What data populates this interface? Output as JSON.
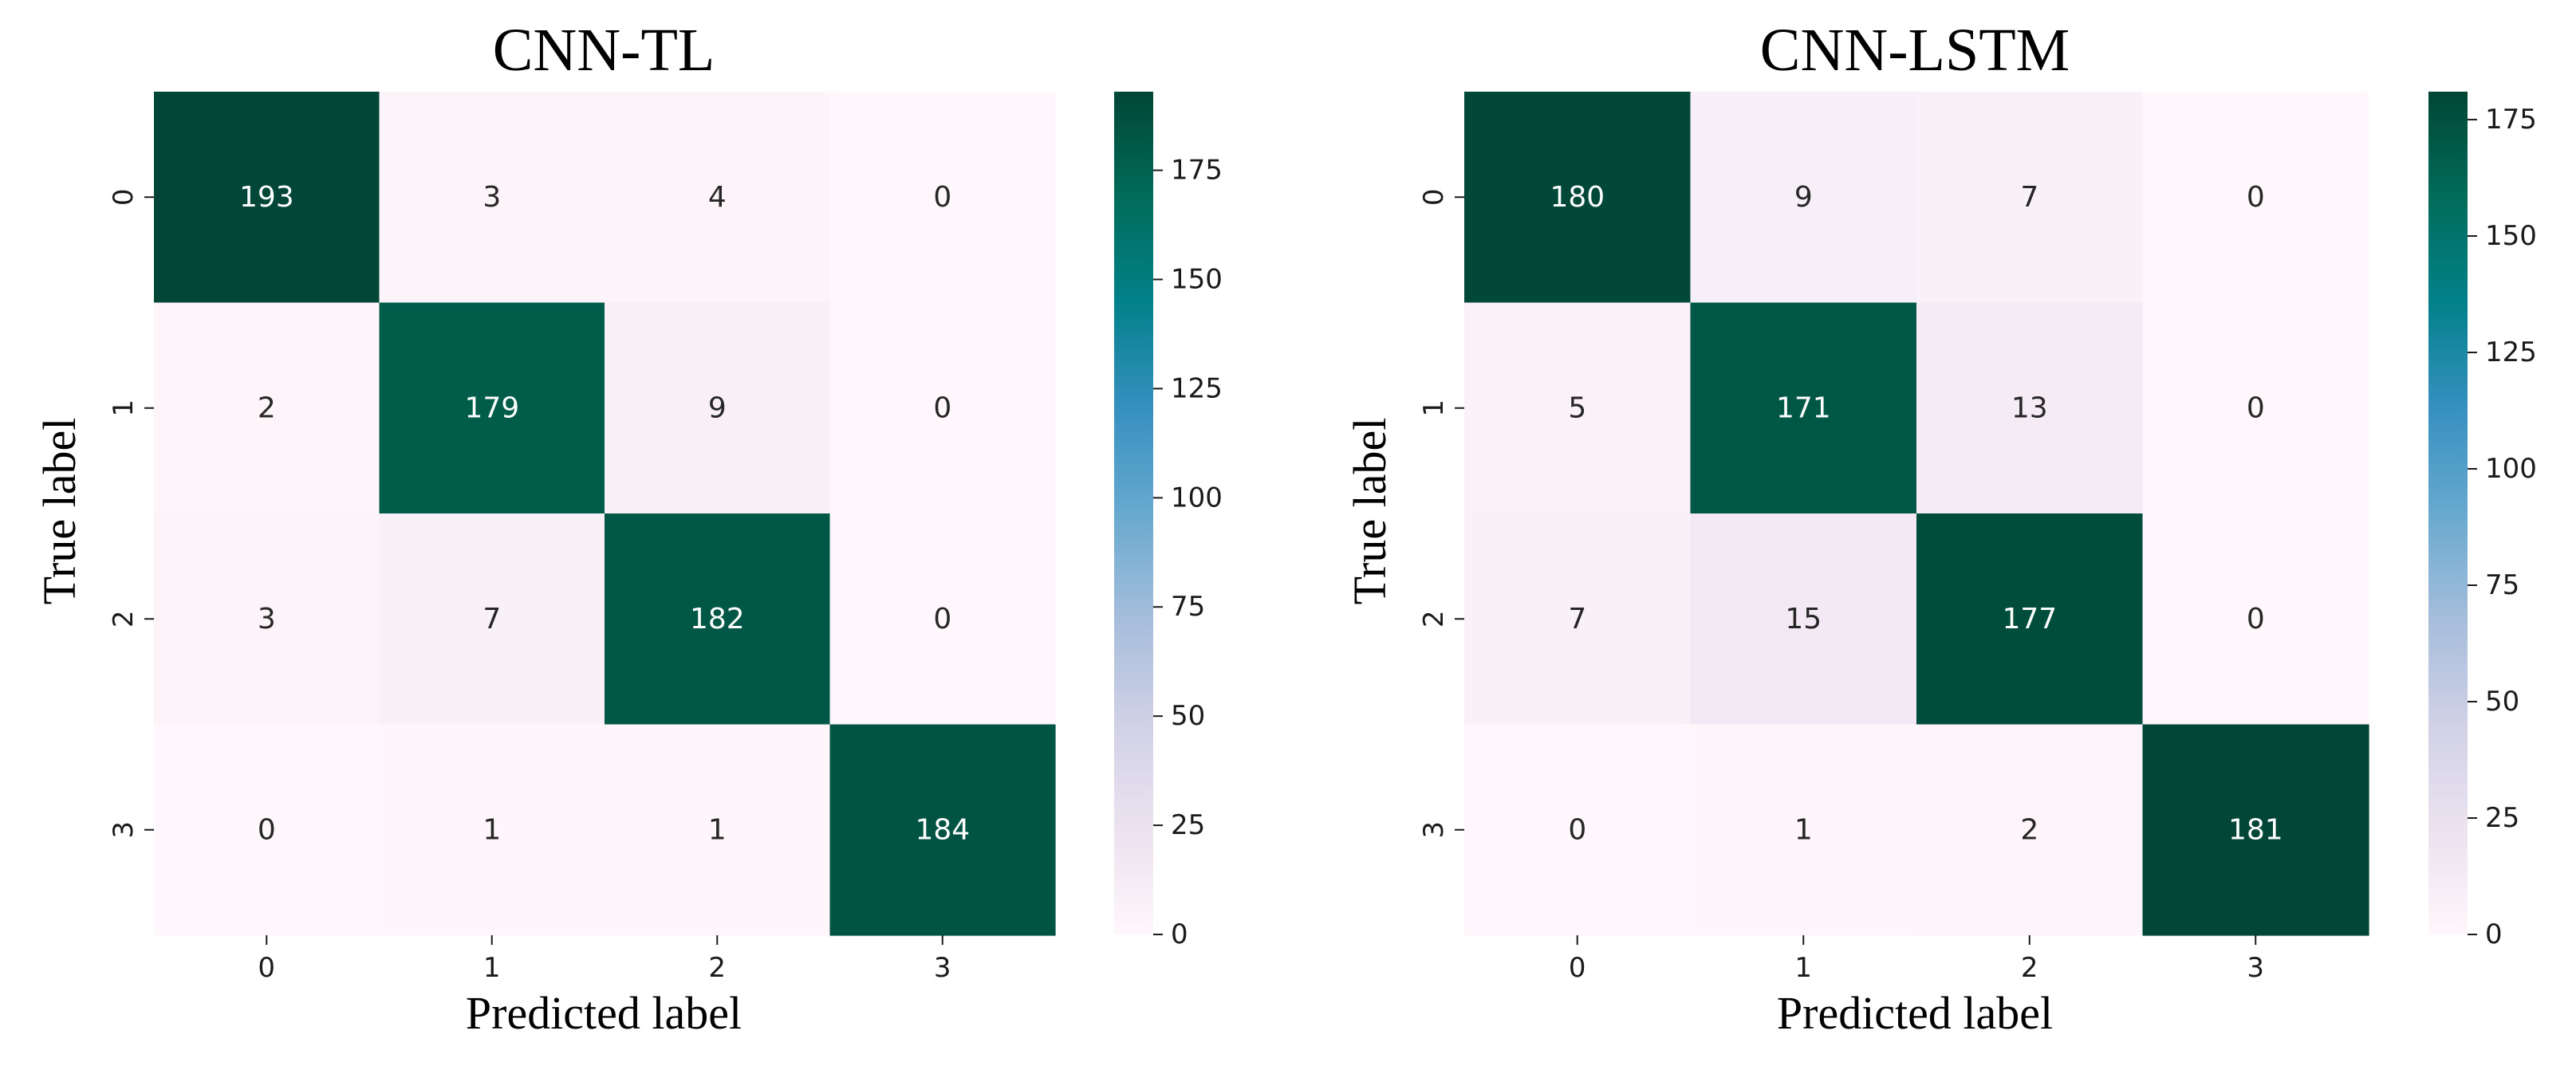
{
  "colormap": {
    "name": "PuBuGn",
    "stops": [
      "#fff7fb",
      "#ece2f0",
      "#d0d1e6",
      "#a6bddb",
      "#67a9cf",
      "#3690c0",
      "#02818a",
      "#016c59",
      "#014636"
    ]
  },
  "chart_data": [
    {
      "type": "heatmap",
      "title": "CNN-TL",
      "xlabel": "Predicted label",
      "ylabel": "True label",
      "x_categories": [
        "0",
        "1",
        "2",
        "3"
      ],
      "y_categories": [
        "0",
        "1",
        "2",
        "3"
      ],
      "matrix": [
        [
          193,
          3,
          4,
          0
        ],
        [
          2,
          179,
          9,
          0
        ],
        [
          3,
          7,
          182,
          0
        ],
        [
          0,
          1,
          1,
          184
        ]
      ],
      "color_range": [
        0,
        193
      ],
      "colorbar_ticks": [
        "0",
        "25",
        "50",
        "75",
        "100",
        "125",
        "150",
        "175"
      ]
    },
    {
      "type": "heatmap",
      "title": "CNN-LSTM",
      "xlabel": "Predicted label",
      "ylabel": "True label",
      "x_categories": [
        "0",
        "1",
        "2",
        "3"
      ],
      "y_categories": [
        "0",
        "1",
        "2",
        "3"
      ],
      "matrix": [
        [
          180,
          9,
          7,
          0
        ],
        [
          5,
          171,
          13,
          0
        ],
        [
          7,
          15,
          177,
          0
        ],
        [
          0,
          1,
          2,
          181
        ]
      ],
      "color_range": [
        0,
        181
      ],
      "colorbar_ticks": [
        "0",
        "25",
        "50",
        "75",
        "100",
        "125",
        "150",
        "175"
      ]
    }
  ]
}
